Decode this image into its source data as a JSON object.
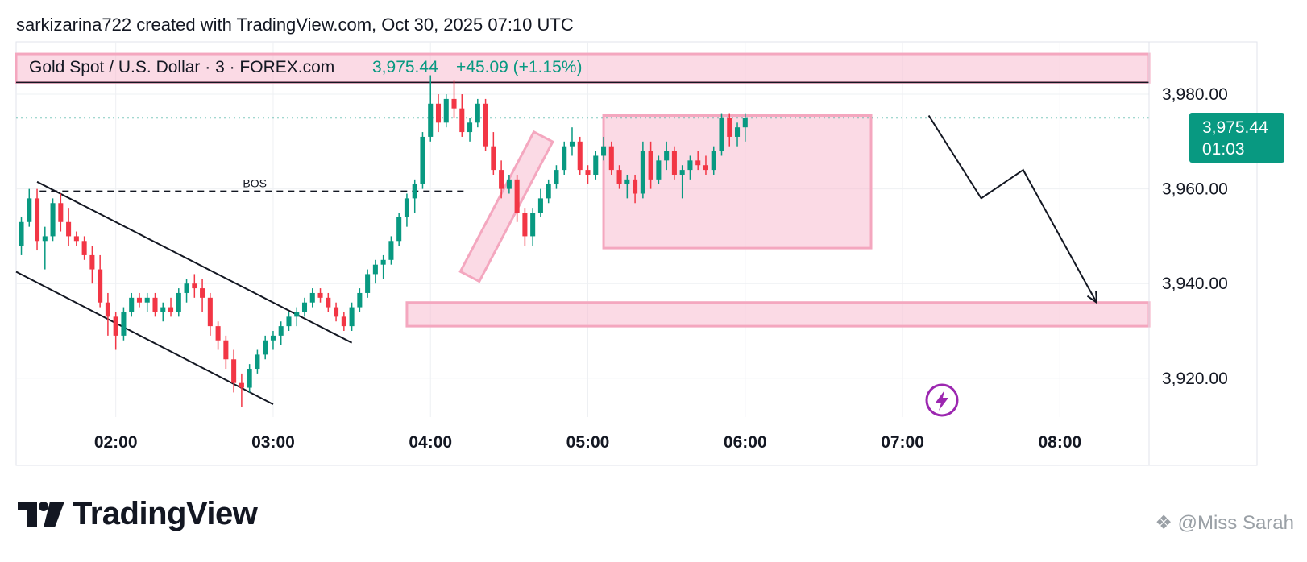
{
  "header": {
    "attribution": "sarkizarina722 created with TradingView.com, Oct 30, 2025 07:10 UTC"
  },
  "brand": {
    "name": "TradingView",
    "logo": "tradingview-logo-icon"
  },
  "watermark": {
    "text": "@Miss Sarah",
    "icon": "social-logo-icon"
  },
  "colors": {
    "up": "#089981",
    "down": "#f23645",
    "zone_fill": "#f8bbd0",
    "zone_border": "#f4a7bf",
    "grid": "#eef0f3",
    "price_tag": "#089981",
    "replay_icon": "#9c27b0"
  },
  "chart_data": {
    "type": "candlestick",
    "symbol": "Gold Spot / U.S. Dollar",
    "interval": "3",
    "exchange": "FOREX.com",
    "legend_text": "Gold Spot / U.S. Dollar · 3 · FOREX.com",
    "last_price": "3,975.44",
    "change": "+45.09 (+1.15%)",
    "countdown": "01:03",
    "y_ticks": [
      "3,980.00",
      "3,960.00",
      "3,940.00",
      "3,920.00"
    ],
    "y_tick_values": [
      3980,
      3960,
      3940,
      3920
    ],
    "x_ticks": [
      "02:00",
      "03:00",
      "04:00",
      "05:00",
      "06:00",
      "07:00",
      "08:00"
    ],
    "x_tick_minutes": [
      120,
      180,
      240,
      300,
      360,
      420,
      480
    ],
    "ylim": [
      3913.5,
      3988
    ],
    "xlim_minutes": [
      82,
      514
    ],
    "bos_label": "BOS",
    "bos_level": 3959.5,
    "candle_interval_min": 3,
    "candles_start_min": 84,
    "candles": [
      [
        3948,
        3954,
        3946,
        3953
      ],
      [
        3953,
        3960,
        3952,
        3958
      ],
      [
        3958,
        3960,
        3947,
        3949
      ],
      [
        3949,
        3952,
        3943,
        3950
      ],
      [
        3950,
        3958,
        3949,
        3957
      ],
      [
        3957,
        3959,
        3951,
        3953
      ],
      [
        3953,
        3956,
        3948,
        3950
      ],
      [
        3950,
        3951,
        3948,
        3949
      ],
      [
        3949,
        3950,
        3945,
        3946
      ],
      [
        3946,
        3948,
        3940,
        3943
      ],
      [
        3943,
        3946,
        3935,
        3936
      ],
      [
        3936,
        3938,
        3929,
        3933
      ],
      [
        3933,
        3934,
        3926,
        3929
      ],
      [
        3929,
        3935,
        3928,
        3934
      ],
      [
        3934,
        3938,
        3933,
        3937
      ],
      [
        3937,
        3938,
        3935,
        3936
      ],
      [
        3936,
        3938,
        3934,
        3937
      ],
      [
        3937,
        3938,
        3933,
        3934
      ],
      [
        3934,
        3936,
        3932,
        3935
      ],
      [
        3935,
        3937,
        3933,
        3934
      ],
      [
        3934,
        3939,
        3933,
        3938
      ],
      [
        3938,
        3941,
        3936,
        3940
      ],
      [
        3940,
        3942,
        3937,
        3939
      ],
      [
        3939,
        3941,
        3934,
        3937
      ],
      [
        3937,
        3938,
        3929,
        3931
      ],
      [
        3931,
        3932,
        3926,
        3928
      ],
      [
        3928,
        3929,
        3922,
        3924
      ],
      [
        3924,
        3926,
        3917,
        3919
      ],
      [
        3919,
        3921,
        3914,
        3918
      ],
      [
        3918,
        3923,
        3917,
        3922
      ],
      [
        3922,
        3926,
        3921,
        3925
      ],
      [
        3925,
        3929,
        3924,
        3928
      ],
      [
        3928,
        3930,
        3926,
        3929
      ],
      [
        3929,
        3932,
        3927,
        3931
      ],
      [
        3931,
        3934,
        3930,
        3933
      ],
      [
        3933,
        3935,
        3931,
        3934
      ],
      [
        3934,
        3937,
        3933,
        3936
      ],
      [
        3936,
        3939,
        3935,
        3938
      ],
      [
        3938,
        3939,
        3936,
        3937
      ],
      [
        3937,
        3938,
        3934,
        3935
      ],
      [
        3935,
        3936,
        3932,
        3933
      ],
      [
        3933,
        3934,
        3930,
        3931
      ],
      [
        3931,
        3936,
        3930,
        3935
      ],
      [
        3935,
        3939,
        3934,
        3938
      ],
      [
        3938,
        3943,
        3937,
        3942
      ],
      [
        3942,
        3945,
        3940,
        3944
      ],
      [
        3944,
        3946,
        3941,
        3945
      ],
      [
        3945,
        3950,
        3944,
        3949
      ],
      [
        3949,
        3955,
        3948,
        3954
      ],
      [
        3954,
        3959,
        3952,
        3958
      ],
      [
        3958,
        3962,
        3955,
        3961
      ],
      [
        3961,
        3972,
        3960,
        3971
      ],
      [
        3971,
        3984,
        3970,
        3978
      ],
      [
        3978,
        3980,
        3972,
        3974
      ],
      [
        3974,
        3980,
        3973,
        3979
      ],
      [
        3979,
        3983,
        3975,
        3977
      ],
      [
        3977,
        3980,
        3971,
        3972
      ],
      [
        3972,
        3975,
        3970,
        3974
      ],
      [
        3974,
        3979,
        3973,
        3978
      ],
      [
        3978,
        3979,
        3968,
        3969
      ],
      [
        3969,
        3972,
        3963,
        3964
      ],
      [
        3964,
        3966,
        3958,
        3960
      ],
      [
        3960,
        3963,
        3959,
        3962
      ],
      [
        3962,
        3963,
        3953,
        3955
      ],
      [
        3955,
        3956,
        3948,
        3950
      ],
      [
        3950,
        3956,
        3948,
        3955
      ],
      [
        3955,
        3960,
        3954,
        3958
      ],
      [
        3958,
        3962,
        3957,
        3961
      ],
      [
        3961,
        3965,
        3960,
        3964
      ],
      [
        3964,
        3970,
        3963,
        3969
      ],
      [
        3969,
        3973,
        3967,
        3970
      ],
      [
        3970,
        3971,
        3963,
        3964
      ],
      [
        3964,
        3965,
        3961,
        3963
      ],
      [
        3963,
        3968,
        3962,
        3967
      ],
      [
        3967,
        3971,
        3966,
        3969
      ],
      [
        3969,
        3970,
        3963,
        3964
      ],
      [
        3964,
        3965,
        3960,
        3961
      ],
      [
        3961,
        3963,
        3958,
        3962
      ],
      [
        3962,
        3963,
        3957,
        3959
      ],
      [
        3959,
        3970,
        3958,
        3968
      ],
      [
        3968,
        3970,
        3960,
        3962
      ],
      [
        3962,
        3967,
        3961,
        3966
      ],
      [
        3966,
        3970,
        3964,
        3968
      ],
      [
        3968,
        3969,
        3962,
        3963
      ],
      [
        3963,
        3965,
        3958,
        3964
      ],
      [
        3964,
        3967,
        3962,
        3966
      ],
      [
        3966,
        3968,
        3964,
        3965
      ],
      [
        3965,
        3967,
        3963,
        3964
      ],
      [
        3964,
        3969,
        3963,
        3968
      ],
      [
        3968,
        3976,
        3967,
        3975
      ],
      [
        3975,
        3976,
        3969,
        3971
      ],
      [
        3971,
        3974,
        3969,
        3973
      ],
      [
        3973,
        3976,
        3970,
        3975
      ]
    ],
    "zones": [
      {
        "name": "top-resistance-zone",
        "t0": 82,
        "t1": 514,
        "p0": 3982.5,
        "p1": 3988.5
      },
      {
        "name": "consolidation-box",
        "t0": 306,
        "t1": 408,
        "p0": 3947.5,
        "p1": 3975.5
      },
      {
        "name": "demand-zone",
        "t0": 231,
        "t1": 514,
        "p0": 3931,
        "p1": 3936
      }
    ],
    "channel_lines": [
      {
        "name": "channel-upper-line",
        "t0": 90,
        "p0": 3961.5,
        "t1": 210,
        "p1": 3927.5
      },
      {
        "name": "channel-lower-line",
        "t0": 82,
        "p0": 3942.5,
        "t1": 180,
        "p1": 3914.5
      }
    ],
    "flag": {
      "t0": 255,
      "p0": 3941.5,
      "t1": 283,
      "p1": 3971,
      "width_price": 4.5
    },
    "forecast_path": [
      [
        430,
        3975.5
      ],
      [
        450,
        3958
      ],
      [
        466,
        3964
      ],
      [
        494,
        3936
      ]
    ]
  }
}
